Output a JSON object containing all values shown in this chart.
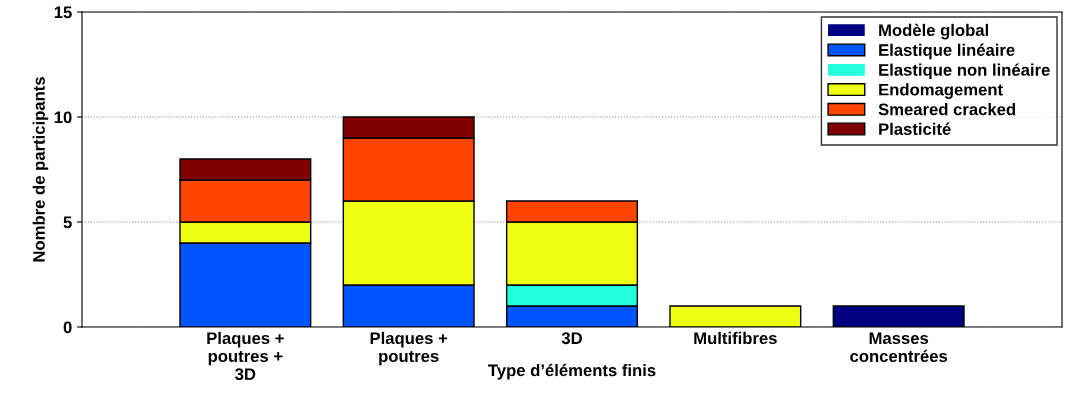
{
  "chart_data": {
    "type": "bar",
    "stacked": true,
    "xlabel": "Type d’éléments finis",
    "ylabel": "Nombre de participants",
    "categories": [
      "Plaques +\npoutres +\n3D",
      "Plaques +\npoutres",
      "3D",
      "Multifibres",
      "Masses\nconcentrées"
    ],
    "series": [
      {
        "name": "Modèle global",
        "color": "#000080",
        "values": [
          0,
          0,
          0,
          0,
          1
        ]
      },
      {
        "name": "Elastique linéaire",
        "color": "#0055ff",
        "values": [
          4,
          2,
          1,
          0,
          0
        ]
      },
      {
        "name": "Elastique non linéaire",
        "color": "#22ffdd",
        "values": [
          0,
          0,
          1,
          0,
          0
        ]
      },
      {
        "name": "Endomagement",
        "color": "#eeff11",
        "values": [
          1,
          4,
          3,
          1,
          0
        ]
      },
      {
        "name": "Smeared cracked",
        "color": "#ff4400",
        "values": [
          2,
          3,
          1,
          0,
          0
        ]
      },
      {
        "name": "Plasticité",
        "color": "#800000",
        "values": [
          1,
          1,
          0,
          0,
          0
        ]
      }
    ],
    "ylim": [
      0,
      15
    ],
    "yticks": [
      0,
      5,
      10,
      15
    ],
    "grid": "y",
    "legend": "top right"
  }
}
